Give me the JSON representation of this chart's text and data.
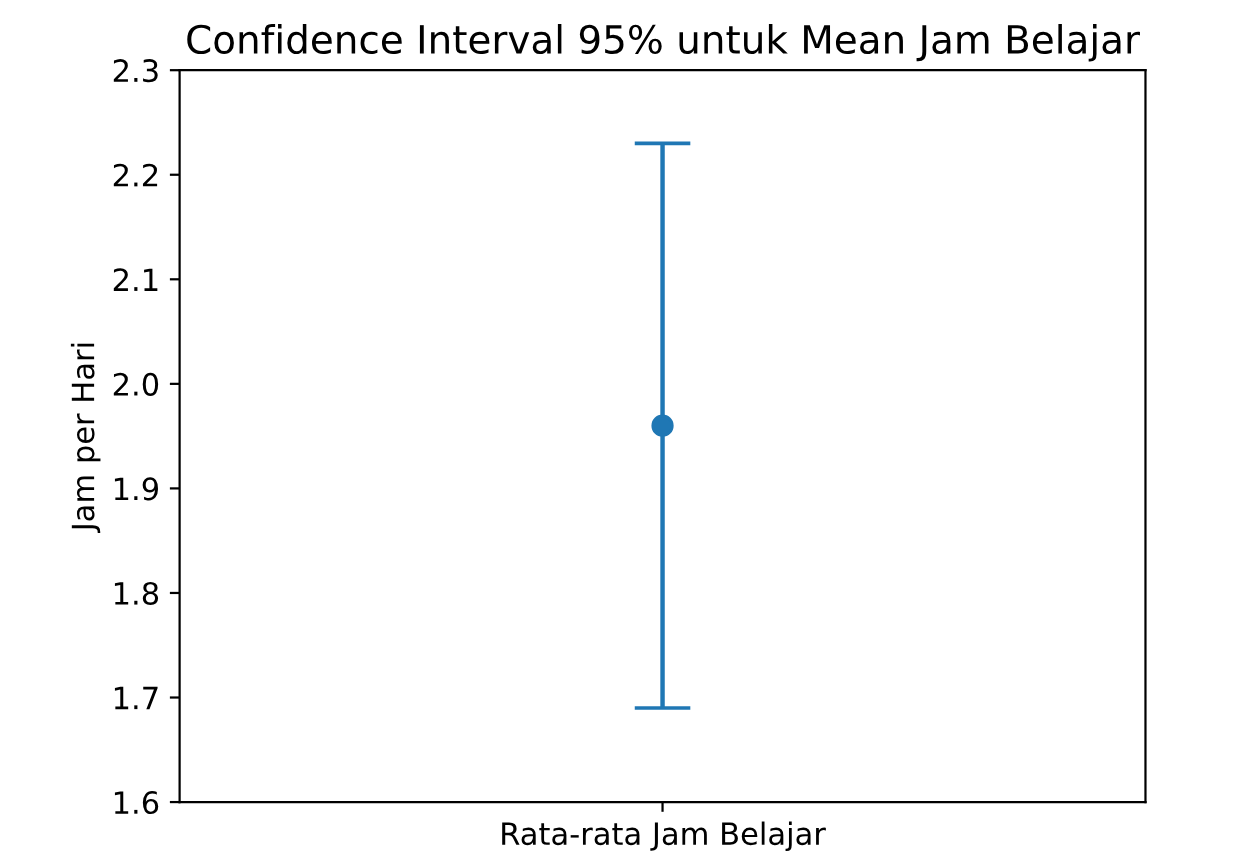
{
  "chart_data": {
    "type": "scatter",
    "title": "Confidence Interval 95% untuk Mean Jam Belajar",
    "ylabel": "Jam per Hari",
    "categories": [
      "Rata-rata Jam Belajar"
    ],
    "series": [
      {
        "color": "#1f77b4",
        "values": [
          1.96
        ],
        "errors": [
          0.27
        ]
      }
    ],
    "ylim": [
      1.6,
      2.3
    ],
    "yticks": [
      1.6,
      1.7,
      1.8,
      1.9,
      {
        "value": 2,
        "label": "2.0"
      },
      2.1,
      2.2,
      2.3
    ],
    "marker": "circle",
    "grid": false,
    "legend": false
  }
}
